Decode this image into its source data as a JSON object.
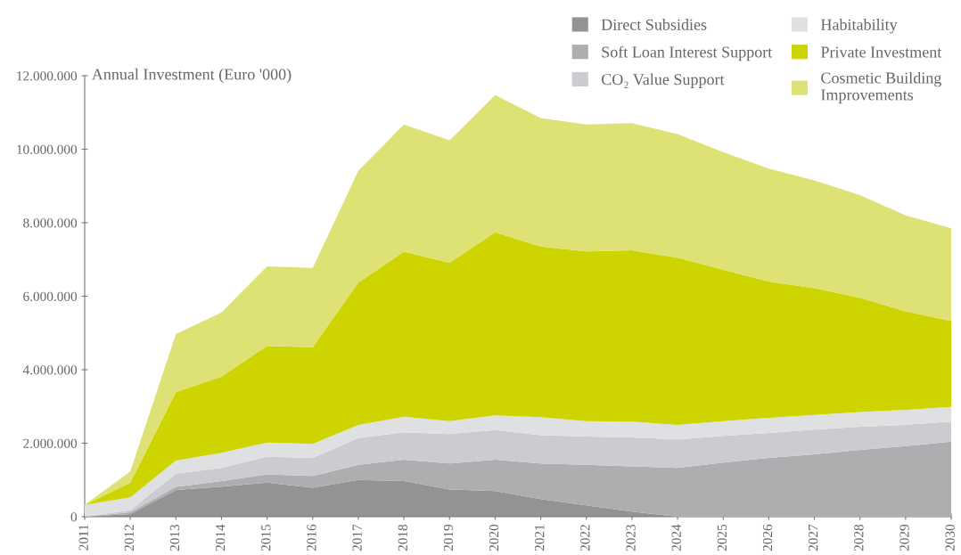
{
  "chart_data": {
    "type": "area",
    "stacked": true,
    "ylabel": "Annual Investment (Euro '000)",
    "categories": [
      "2011",
      "2012",
      "2013",
      "2014",
      "2015",
      "2016",
      "2017",
      "2018",
      "2019",
      "2020",
      "2021",
      "2022",
      "2023",
      "2024",
      "2025",
      "2026",
      "2027",
      "2028",
      "2029",
      "2030"
    ],
    "series": [
      {
        "name": "Direct Subsidies",
        "color": "#939393",
        "values": [
          0,
          70000,
          730000,
          820000,
          930000,
          790000,
          1000000,
          970000,
          740000,
          700000,
          480000,
          310000,
          140000,
          0,
          0,
          0,
          0,
          0,
          0,
          0
        ]
      },
      {
        "name": "Soft Loan Interest Support",
        "color": "#adaeb0",
        "values": [
          0,
          50000,
          80000,
          150000,
          220000,
          320000,
          410000,
          580000,
          710000,
          850000,
          970000,
          1100000,
          1230000,
          1330000,
          1470000,
          1600000,
          1700000,
          1820000,
          1920000,
          2040000
        ]
      },
      {
        "name": "CO₂ Value Support",
        "color": "#cbcccf",
        "values": [
          0,
          60000,
          360000,
          360000,
          480000,
          490000,
          730000,
          750000,
          800000,
          810000,
          770000,
          770000,
          790000,
          770000,
          730000,
          680000,
          670000,
          630000,
          580000,
          550000
        ]
      },
      {
        "name": "Habitability",
        "color": "#dfe0e2",
        "values": [
          320000,
          350000,
          360000,
          410000,
          390000,
          380000,
          360000,
          420000,
          350000,
          400000,
          490000,
          420000,
          430000,
          400000,
          400000,
          410000,
          400000,
          400000,
          410000,
          400000
        ]
      },
      {
        "name": "Private Investment",
        "color": "#cdd400",
        "values": [
          0,
          400000,
          1860000,
          2070000,
          2630000,
          2630000,
          3870000,
          4490000,
          4310000,
          4980000,
          4640000,
          4620000,
          4660000,
          4550000,
          4120000,
          3710000,
          3450000,
          3110000,
          2680000,
          2340000
        ]
      },
      {
        "name": "Cosmetic Building\nImprovements",
        "color": "#dee275",
        "values": [
          0,
          300000,
          1580000,
          1750000,
          2160000,
          2160000,
          3040000,
          3460000,
          3330000,
          3730000,
          3500000,
          3450000,
          3460000,
          3360000,
          3200000,
          3070000,
          2930000,
          2790000,
          2610000,
          2520000
        ]
      }
    ],
    "ylim": [
      0,
      12000000
    ],
    "yticks": [
      0,
      {
        "value": 2000000,
        "label": "2.000.000"
      },
      {
        "value": 4000000,
        "label": "4.000.000"
      },
      {
        "value": 6000000,
        "label": "6.000.000"
      },
      {
        "value": 8000000,
        "label": "8.000.000"
      },
      {
        "value": 10000000,
        "label": "10.000.000"
      },
      {
        "value": 12000000,
        "label": "12.000.000"
      }
    ],
    "grid": false,
    "legend": "top right"
  }
}
